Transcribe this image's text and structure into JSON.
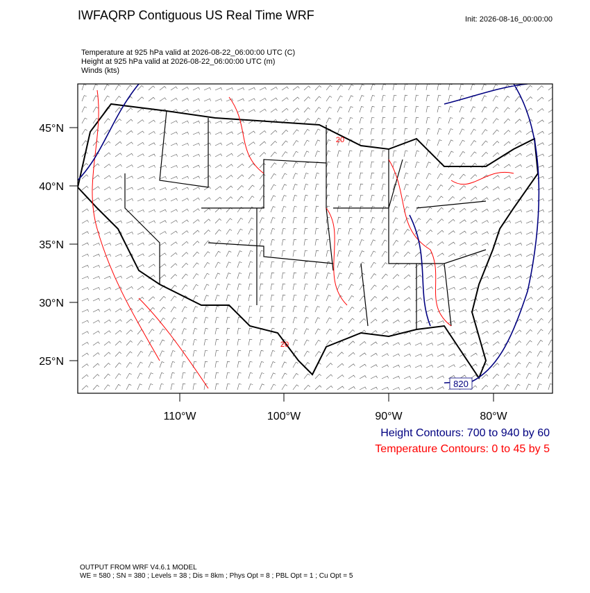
{
  "header": {
    "title": "IWFAQRP Contiguous US Real Time WRF",
    "init": "Init: 2026-08-16_00:00:00"
  },
  "fields": [
    "Temperature at 925 hPa valid at 2026-08-22_06:00:00 UTC   (C)",
    "Height at 925 hPa valid at 2026-08-22_06:00:00 UTC   (m)",
    "Winds   (kts)"
  ],
  "lat_labels": [
    "45°N",
    "40°N",
    "35°N",
    "30°N",
    "25°N"
  ],
  "lon_labels": [
    "110°W",
    "100°W",
    "90°W",
    "80°W"
  ],
  "contour_labels": [
    "820",
    "20",
    "20"
  ],
  "legend": [
    {
      "text": "Height Contours: 700 to 940 by 60",
      "color": "#000080"
    },
    {
      "text": "Temperature Contours: 0 to 45 by 5",
      "color": "#ff0000"
    }
  ],
  "footer": [
    "OUTPUT FROM WRF V4.6.1 MODEL",
    "WE = 580 ; SN = 380 ; Levels = 38 ; Dis = 8km ; Phys Opt = 8 ; PBL Opt = 1 ; Cu Opt = 5"
  ]
}
